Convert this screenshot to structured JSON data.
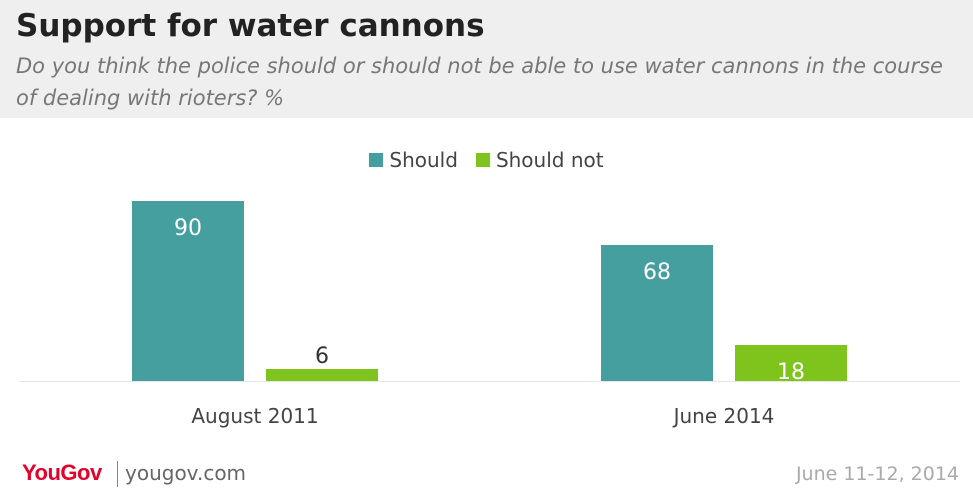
{
  "header": {
    "title": "Support for water cannons",
    "subtitle": "Do you think the police should or should not be able to use water cannons in the course of dealing with rioters? %"
  },
  "colors": {
    "should": "#459f9f",
    "should_not": "#7ec41d",
    "header_bg": "#efefef"
  },
  "chart_data": {
    "type": "bar",
    "categories": [
      "August 2011",
      "June 2014"
    ],
    "series": [
      {
        "name": "Should",
        "values": [
          90,
          68
        ]
      },
      {
        "name": "Should not",
        "values": [
          6,
          18
        ]
      }
    ],
    "title": "Support for water cannons",
    "xlabel": "",
    "ylabel": "",
    "ylim": [
      0,
      100
    ],
    "legend": "top-center",
    "grid": false
  },
  "footer": {
    "logo": "YouGov",
    "site": "yougov.com",
    "date": "June 11-12, 2014"
  }
}
